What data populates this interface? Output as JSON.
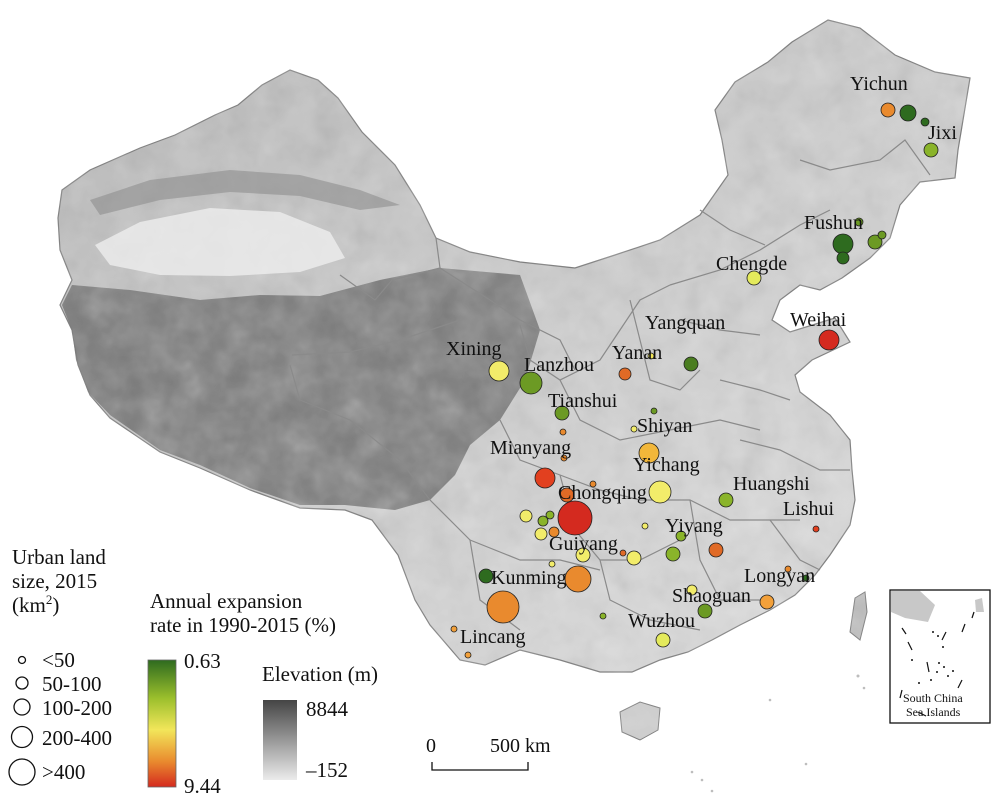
{
  "map": {
    "cities": [
      {
        "name": "Yichun",
        "label": "Yichun"
      },
      {
        "name": "Jixi",
        "label": "Jixi"
      },
      {
        "name": "Fushun",
        "label": "Fushun"
      },
      {
        "name": "Chengde",
        "label": "Chengde"
      },
      {
        "name": "Weihai",
        "label": "Weihai"
      },
      {
        "name": "Yangquan",
        "label": "Yangquan"
      },
      {
        "name": "Xining",
        "label": "Xining"
      },
      {
        "name": "Lanzhou",
        "label": "Lanzhou"
      },
      {
        "name": "Yanan",
        "label": "Yanan"
      },
      {
        "name": "Tianshui",
        "label": "Tianshui"
      },
      {
        "name": "Shiyan",
        "label": "Shiyan"
      },
      {
        "name": "Mianyang",
        "label": "Mianyang"
      },
      {
        "name": "Yichang",
        "label": "Yichang"
      },
      {
        "name": "Huangshi",
        "label": "Huangshi"
      },
      {
        "name": "Chongqing",
        "label": "Chongqing"
      },
      {
        "name": "Lishui",
        "label": "Lishui"
      },
      {
        "name": "Yiyang",
        "label": "Yiyang"
      },
      {
        "name": "Guiyang",
        "label": "Guiyang"
      },
      {
        "name": "Kunming",
        "label": "Kunming"
      },
      {
        "name": "Longyan",
        "label": "Longyan"
      },
      {
        "name": "Shaoguan",
        "label": "Shaoguan"
      },
      {
        "name": "Wuzhou",
        "label": "Wuzhou"
      },
      {
        "name": "Lincang",
        "label": "Lincang"
      }
    ],
    "inset_label_line1": "South China",
    "inset_label_line2": "Sea Islands",
    "scale_zero": "0",
    "scale_500": "500 km"
  },
  "legend": {
    "size_title_line1": "Urban land",
    "size_title_line2": "size, 2015",
    "size_title_line3_prefix": "(km",
    "size_title_line3_sup": "2",
    "size_title_line3_suffix": ")",
    "size_classes": [
      "<50",
      "50-100",
      "100-200",
      "200-400",
      ">400"
    ],
    "rate_title_line1": "Annual expansion",
    "rate_title_line2": "rate in 1990-2015 (%)",
    "rate_max": "0.63",
    "rate_min": "9.44",
    "rate_colors": [
      "#2e6b1f",
      "#9bbf2c",
      "#f2e65a",
      "#e98a2e",
      "#d42a1f"
    ],
    "elev_title": "Elevation (m)",
    "elev_max": "8844",
    "elev_min": "–152"
  }
}
